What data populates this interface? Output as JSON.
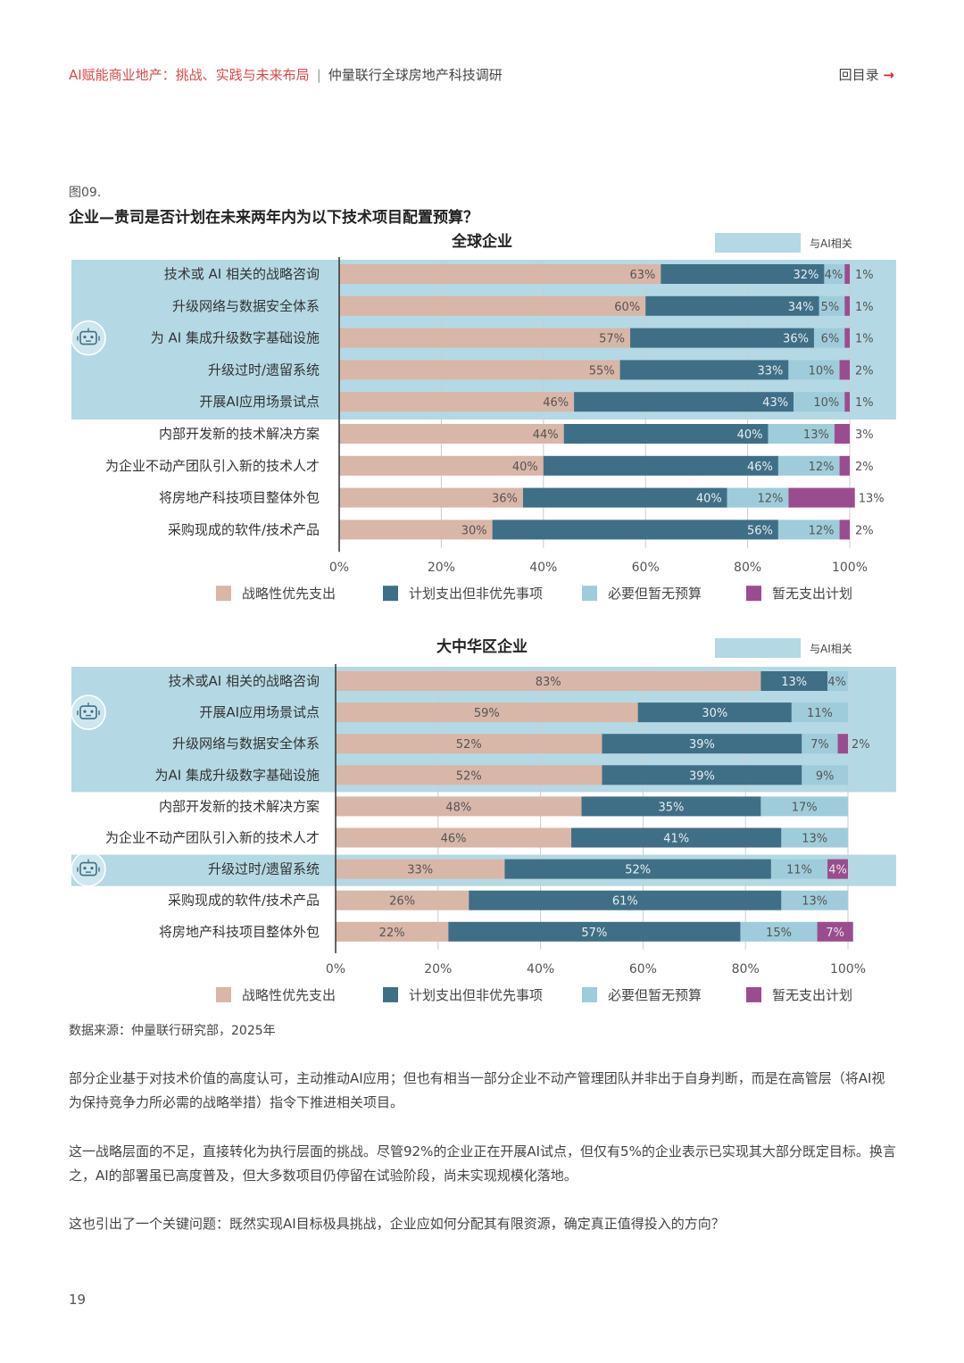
{
  "header": {
    "report_title": "AI赋能商业地产：挑战、实践与未来布局",
    "separator": "|",
    "report_subtitle": "仲量联行全球房地产科技调研",
    "back_label": "回目录",
    "back_arrow": "→"
  },
  "figure": {
    "number": "图09.",
    "title": "企业—贵司是否计划在未来两年内为以下技术项目配置预算？"
  },
  "colors": {
    "strategic": "#d8b6a8",
    "planned": "#3f6f86",
    "needed": "#9fccda",
    "none": "#9a4d8e",
    "ai_band": "#b4d9e4",
    "axis": "#333333",
    "grid": "#cccccc"
  },
  "legend": [
    "战略性优先支出",
    "计划支出但非优先事项",
    "必要但暂无预算",
    "暂无支出计划"
  ],
  "ai_legend_label": "与AI相关",
  "chart_data": [
    {
      "type": "bar",
      "orientation": "horizontal",
      "stacked": true,
      "title": "全球企业",
      "categories": [
        "技术或 AI 相关的战略咨询",
        "升级网络与数据安全体系",
        "为 AI 集成升级数字基础设施",
        "升级过时/遗留系统",
        "开展AI应用场景试点",
        "内部开发新的技术解决方案",
        "为企业不动产团队引入新的技术人才",
        "将房地产科技项目整体外包",
        "采购现成的软件/技术产品"
      ],
      "series": [
        {
          "name": "战略性优先支出",
          "values": [
            63,
            60,
            57,
            55,
            46,
            44,
            40,
            36,
            30
          ]
        },
        {
          "name": "计划支出但非优先事项",
          "values": [
            32,
            34,
            36,
            33,
            43,
            40,
            46,
            40,
            56
          ]
        },
        {
          "name": "必要但暂无预算",
          "values": [
            4,
            5,
            6,
            10,
            10,
            13,
            12,
            12,
            12
          ]
        },
        {
          "name": "暂无支出计划",
          "values": [
            1,
            1,
            1,
            2,
            1,
            3,
            2,
            13,
            2
          ]
        }
      ],
      "ai_related_rows": [
        0,
        1,
        2,
        3,
        4
      ],
      "ai_icon_rows": [
        2
      ],
      "xlim": [
        0,
        100
      ],
      "xticks": [
        "0%",
        "20%",
        "40%",
        "60%",
        "80%",
        "100%"
      ]
    },
    {
      "type": "bar",
      "orientation": "horizontal",
      "stacked": true,
      "title": "大中华区企业",
      "categories": [
        "技术或AI 相关的战略咨询",
        "开展AI应用场景试点",
        "升级网络与数据安全体系",
        "为AI 集成升级数字基础设施",
        "内部开发新的技术解决方案",
        "为企业不动产团队引入新的技术人才",
        "升级过时/遗留系统",
        "采购现成的软件/技术产品",
        "将房地产科技项目整体外包"
      ],
      "series": [
        {
          "name": "战略性优先支出",
          "values": [
            83,
            59,
            52,
            52,
            48,
            46,
            33,
            26,
            22
          ]
        },
        {
          "name": "计划支出但非优先事项",
          "values": [
            13,
            30,
            39,
            39,
            35,
            41,
            52,
            61,
            57
          ]
        },
        {
          "name": "必要但暂无预算",
          "values": [
            4,
            11,
            7,
            9,
            17,
            13,
            11,
            13,
            15
          ]
        },
        {
          "name": "暂无支出计划",
          "values": [
            0,
            0,
            2,
            0,
            0,
            0,
            4,
            0,
            7
          ]
        }
      ],
      "ai_related_rows": [
        0,
        1,
        2,
        3,
        6
      ],
      "ai_icon_rows": [
        1,
        6
      ],
      "xlim": [
        0,
        100
      ],
      "xticks": [
        "0%",
        "20%",
        "40%",
        "60%",
        "80%",
        "100%"
      ]
    }
  ],
  "source": "数据来源：仲量联行研究部，2025年",
  "paragraphs": [
    "部分企业基于对技术价值的高度认可，主动推动AI应用；但也有相当一部分企业不动产管理团队并非出于自身判断，而是在高管层（将AI视为保持竞争力所必需的战略举措）指令下推进相关项目。",
    "这一战略层面的不足，直接转化为执行层面的挑战。尽管92%的企业正在开展AI试点，但仅有5%的企业表示已实现其大部分既定目标。换言之，AI的部署虽已高度普及，但大多数项目仍停留在试验阶段，尚未实现规模化落地。",
    "这也引出了一个关键问题：既然实现AI目标极具挑战，企业应如何分配其有限资源，确定真正值得投入的方向？"
  ],
  "page_number": "19"
}
